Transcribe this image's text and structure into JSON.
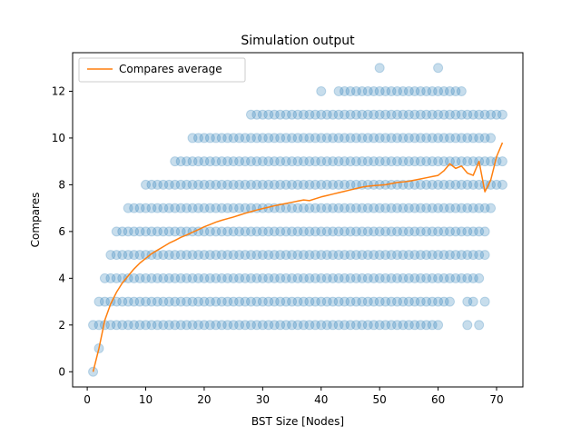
{
  "chart_data": {
    "type": "scatter",
    "title": "Simulation output",
    "xlabel": "BST Size [Nodes]",
    "ylabel": "Compares",
    "xlim": [
      -2.5,
      74.5
    ],
    "ylim": [
      -0.65,
      13.65
    ],
    "xticks": [
      0,
      10,
      20,
      30,
      40,
      50,
      60,
      70
    ],
    "yticks": [
      0,
      2,
      4,
      6,
      8,
      10,
      12
    ],
    "grid": false,
    "legend": {
      "position": "top-left",
      "entries": [
        "Compares average"
      ]
    },
    "colors": {
      "scatter": "#1f77b4",
      "line": "#ff7f0e"
    },
    "scatter": {
      "rows": [
        {
          "y": 0,
          "x_ranges": [
            [
              1,
              1
            ]
          ]
        },
        {
          "y": 1,
          "x_ranges": [
            [
              2,
              2
            ]
          ]
        },
        {
          "y": 2,
          "x_ranges": [
            [
              1,
              58
            ]
          ],
          "sparse_x": [
            59,
            60,
            65,
            67
          ]
        },
        {
          "y": 3,
          "x_ranges": [
            [
              2,
              58
            ]
          ],
          "sparse_x": [
            59,
            60,
            61,
            62,
            65,
            66,
            68
          ]
        },
        {
          "y": 4,
          "x_ranges": [
            [
              3,
              60
            ]
          ],
          "sparse_x": [
            61,
            62,
            63,
            64,
            65,
            66,
            67
          ]
        },
        {
          "y": 5,
          "x_ranges": [
            [
              4,
              61
            ]
          ],
          "sparse_x": [
            62,
            63,
            64,
            65,
            66,
            67,
            68
          ]
        },
        {
          "y": 6,
          "x_ranges": [
            [
              5,
              62
            ]
          ],
          "sparse_x": [
            63,
            64,
            65,
            66,
            67,
            68
          ]
        },
        {
          "y": 7,
          "x_ranges": [
            [
              7,
              64
            ]
          ],
          "sparse_x": [
            65,
            66,
            67,
            68,
            69
          ]
        },
        {
          "y": 8,
          "x_ranges": [
            [
              10,
              66
            ]
          ],
          "sparse_x": [
            67,
            68,
            69,
            70,
            71
          ]
        },
        {
          "y": 9,
          "x_ranges": [
            [
              15,
              66
            ]
          ],
          "sparse_x": [
            67,
            68,
            69,
            70,
            71
          ]
        },
        {
          "y": 10,
          "x_ranges": [
            [
              20,
              63
            ]
          ],
          "sparse_x": [
            18,
            19,
            64,
            65,
            66,
            67,
            68,
            69
          ]
        },
        {
          "y": 11,
          "x_ranges": [
            [
              43,
              64
            ]
          ],
          "sparse_x": [
            28,
            29,
            30,
            31,
            32,
            33,
            34,
            35,
            36,
            37,
            38,
            39,
            40,
            41,
            42,
            65,
            66,
            67,
            68,
            69,
            70,
            71
          ]
        },
        {
          "y": 12,
          "x_ranges": [],
          "sparse_x": [
            40,
            43,
            44,
            45,
            46,
            47,
            48,
            49,
            50,
            51,
            52,
            53,
            54,
            55,
            56,
            57,
            58,
            59,
            60,
            61,
            62,
            63,
            64
          ]
        },
        {
          "y": 13,
          "x_ranges": [],
          "sparse_x": [
            50,
            60
          ]
        }
      ]
    },
    "series": [
      {
        "name": "Compares average",
        "type": "line",
        "x": [
          1,
          2,
          3,
          4,
          5,
          6,
          7,
          8,
          9,
          10,
          11,
          12,
          13,
          14,
          15,
          16,
          17,
          18,
          19,
          20,
          21,
          22,
          23,
          24,
          25,
          26,
          27,
          28,
          29,
          30,
          31,
          32,
          33,
          34,
          35,
          36,
          37,
          38,
          39,
          40,
          41,
          42,
          43,
          44,
          45,
          46,
          47,
          48,
          49,
          50,
          51,
          52,
          53,
          54,
          55,
          56,
          57,
          58,
          59,
          60,
          61,
          62,
          63,
          64,
          65,
          66,
          67,
          68,
          69,
          70,
          71
        ],
        "y": [
          0.0,
          1.0,
          2.2,
          2.9,
          3.4,
          3.8,
          4.1,
          4.4,
          4.65,
          4.85,
          5.05,
          5.2,
          5.35,
          5.5,
          5.62,
          5.75,
          5.85,
          5.97,
          6.08,
          6.2,
          6.3,
          6.4,
          6.48,
          6.55,
          6.62,
          6.7,
          6.78,
          6.85,
          6.92,
          6.98,
          7.04,
          7.1,
          7.15,
          7.2,
          7.25,
          7.3,
          7.35,
          7.32,
          7.4,
          7.48,
          7.54,
          7.6,
          7.66,
          7.72,
          7.78,
          7.84,
          7.9,
          7.94,
          7.96,
          7.98,
          8.0,
          8.05,
          8.1,
          8.12,
          8.15,
          8.2,
          8.25,
          8.3,
          8.35,
          8.4,
          8.6,
          8.9,
          8.7,
          8.8,
          8.5,
          8.4,
          9.0,
          7.7,
          8.2,
          9.2,
          9.8
        ]
      }
    ]
  }
}
